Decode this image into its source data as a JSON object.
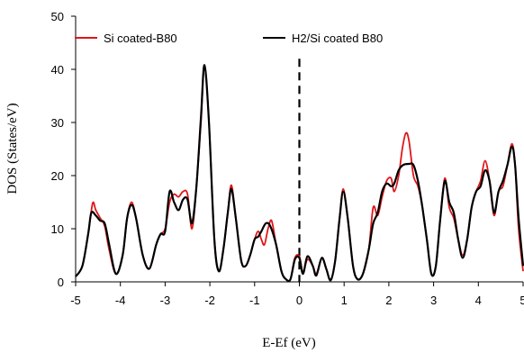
{
  "chart_data": {
    "type": "line",
    "xlabel": "E-Ef (eV)",
    "ylabel": "DOS (States/eV)",
    "xlim": [
      -5,
      5
    ],
    "ylim": [
      0,
      50
    ],
    "x_ticks": [
      -5,
      -4,
      -3,
      -2,
      -1,
      0,
      1,
      2,
      3,
      4,
      5
    ],
    "y_ticks": [
      0,
      10,
      20,
      30,
      40,
      50
    ],
    "grid": false,
    "legend_position": "top",
    "fermi_marker": {
      "x": 0,
      "y_top": 42,
      "style": "dashed"
    },
    "series": [
      {
        "name": "Si coated-B80",
        "color": "#e0161a",
        "points": [
          [
            -5.0,
            1
          ],
          [
            -4.85,
            3
          ],
          [
            -4.72,
            9
          ],
          [
            -4.62,
            14.8
          ],
          [
            -4.55,
            13.5
          ],
          [
            -4.45,
            12
          ],
          [
            -4.35,
            10.5
          ],
          [
            -4.25,
            6
          ],
          [
            -4.1,
            1.5
          ],
          [
            -3.95,
            5
          ],
          [
            -3.85,
            12
          ],
          [
            -3.75,
            15
          ],
          [
            -3.65,
            12
          ],
          [
            -3.5,
            5
          ],
          [
            -3.35,
            2.5
          ],
          [
            -3.2,
            7
          ],
          [
            -3.1,
            9
          ],
          [
            -3.0,
            10
          ],
          [
            -2.9,
            15
          ],
          [
            -2.8,
            16.5
          ],
          [
            -2.7,
            16
          ],
          [
            -2.6,
            17
          ],
          [
            -2.5,
            16.5
          ],
          [
            -2.4,
            10
          ],
          [
            -2.3,
            18
          ],
          [
            -2.2,
            30
          ],
          [
            -2.12,
            40.5
          ],
          [
            -2.02,
            30
          ],
          [
            -1.9,
            8
          ],
          [
            -1.8,
            2
          ],
          [
            -1.7,
            6
          ],
          [
            -1.6,
            13
          ],
          [
            -1.52,
            18.2
          ],
          [
            -1.42,
            12
          ],
          [
            -1.3,
            4
          ],
          [
            -1.2,
            3
          ],
          [
            -1.1,
            5
          ],
          [
            -1.0,
            8
          ],
          [
            -0.92,
            9.5
          ],
          [
            -0.85,
            8
          ],
          [
            -0.78,
            7
          ],
          [
            -0.7,
            10
          ],
          [
            -0.62,
            11.5
          ],
          [
            -0.52,
            7
          ],
          [
            -0.4,
            2
          ],
          [
            -0.3,
            0.5
          ],
          [
            -0.2,
            0.5
          ],
          [
            -0.1,
            4.5
          ],
          [
            0.0,
            4.8
          ],
          [
            0.08,
            1.8
          ],
          [
            0.18,
            4.2
          ],
          [
            0.3,
            3
          ],
          [
            0.38,
            1.5
          ],
          [
            0.5,
            4.5
          ],
          [
            0.6,
            2.5
          ],
          [
            0.7,
            0.3
          ],
          [
            0.8,
            4
          ],
          [
            0.9,
            12
          ],
          [
            0.98,
            17.5
          ],
          [
            1.08,
            12
          ],
          [
            1.2,
            3
          ],
          [
            1.3,
            0.5
          ],
          [
            1.42,
            1.5
          ],
          [
            1.55,
            6
          ],
          [
            1.65,
            14
          ],
          [
            1.75,
            12.5
          ],
          [
            1.85,
            16
          ],
          [
            1.95,
            19
          ],
          [
            2.05,
            19.5
          ],
          [
            2.12,
            17
          ],
          [
            2.22,
            20
          ],
          [
            2.3,
            25
          ],
          [
            2.38,
            28
          ],
          [
            2.45,
            26.5
          ],
          [
            2.55,
            20
          ],
          [
            2.65,
            18
          ],
          [
            2.75,
            14
          ],
          [
            2.85,
            8
          ],
          [
            2.95,
            1.5
          ],
          [
            3.05,
            3
          ],
          [
            3.15,
            12
          ],
          [
            3.25,
            19.5
          ],
          [
            3.35,
            14
          ],
          [
            3.45,
            12
          ],
          [
            3.55,
            8
          ],
          [
            3.65,
            5
          ],
          [
            3.75,
            8
          ],
          [
            3.85,
            14
          ],
          [
            3.95,
            17
          ],
          [
            4.05,
            19
          ],
          [
            4.15,
            22.8
          ],
          [
            4.25,
            19
          ],
          [
            4.35,
            12.5
          ],
          [
            4.45,
            17
          ],
          [
            4.55,
            18
          ],
          [
            4.65,
            22
          ],
          [
            4.75,
            26
          ],
          [
            4.82,
            22
          ],
          [
            4.9,
            10
          ],
          [
            5.0,
            2
          ]
        ]
      },
      {
        "name": "H2/Si coated B80",
        "color": "#000000",
        "points": [
          [
            -5.0,
            1
          ],
          [
            -4.85,
            3
          ],
          [
            -4.72,
            9
          ],
          [
            -4.65,
            13
          ],
          [
            -4.55,
            12.5
          ],
          [
            -4.45,
            11.5
          ],
          [
            -4.35,
            11
          ],
          [
            -4.25,
            7
          ],
          [
            -4.1,
            1.5
          ],
          [
            -3.95,
            5
          ],
          [
            -3.85,
            12
          ],
          [
            -3.75,
            14.5
          ],
          [
            -3.65,
            12
          ],
          [
            -3.5,
            5
          ],
          [
            -3.35,
            2.5
          ],
          [
            -3.2,
            7
          ],
          [
            -3.1,
            9
          ],
          [
            -3.0,
            9.5
          ],
          [
            -2.9,
            17
          ],
          [
            -2.8,
            15
          ],
          [
            -2.7,
            13.5
          ],
          [
            -2.6,
            15.5
          ],
          [
            -2.5,
            15.5
          ],
          [
            -2.4,
            11
          ],
          [
            -2.3,
            18
          ],
          [
            -2.2,
            31
          ],
          [
            -2.12,
            40.8
          ],
          [
            -2.02,
            30
          ],
          [
            -1.9,
            8
          ],
          [
            -1.8,
            2
          ],
          [
            -1.7,
            6
          ],
          [
            -1.6,
            13
          ],
          [
            -1.52,
            17.5
          ],
          [
            -1.42,
            12
          ],
          [
            -1.3,
            4
          ],
          [
            -1.2,
            3
          ],
          [
            -1.1,
            5
          ],
          [
            -1.0,
            8
          ],
          [
            -0.92,
            8.5
          ],
          [
            -0.85,
            9.5
          ],
          [
            -0.75,
            11
          ],
          [
            -0.65,
            10.5
          ],
          [
            -0.52,
            7
          ],
          [
            -0.4,
            2
          ],
          [
            -0.3,
            0.5
          ],
          [
            -0.2,
            0.5
          ],
          [
            -0.1,
            4.2
          ],
          [
            0.0,
            4.5
          ],
          [
            0.08,
            1.5
          ],
          [
            0.18,
            4.8
          ],
          [
            0.3,
            3
          ],
          [
            0.38,
            1.2
          ],
          [
            0.5,
            4.5
          ],
          [
            0.6,
            2.5
          ],
          [
            0.7,
            0.3
          ],
          [
            0.8,
            4
          ],
          [
            0.9,
            12
          ],
          [
            0.98,
            17
          ],
          [
            1.08,
            12
          ],
          [
            1.2,
            3
          ],
          [
            1.3,
            0.5
          ],
          [
            1.42,
            1.5
          ],
          [
            1.55,
            6
          ],
          [
            1.65,
            11
          ],
          [
            1.75,
            13
          ],
          [
            1.85,
            17
          ],
          [
            1.95,
            18.5
          ],
          [
            2.05,
            18
          ],
          [
            2.12,
            18.5
          ],
          [
            2.22,
            21
          ],
          [
            2.32,
            22
          ],
          [
            2.45,
            22.2
          ],
          [
            2.55,
            22
          ],
          [
            2.65,
            19
          ],
          [
            2.75,
            14
          ],
          [
            2.85,
            8
          ],
          [
            2.95,
            1.5
          ],
          [
            3.05,
            3
          ],
          [
            3.15,
            12
          ],
          [
            3.25,
            19
          ],
          [
            3.35,
            15
          ],
          [
            3.45,
            13
          ],
          [
            3.55,
            8
          ],
          [
            3.65,
            4.5
          ],
          [
            3.75,
            8
          ],
          [
            3.85,
            14
          ],
          [
            3.95,
            17
          ],
          [
            4.05,
            18
          ],
          [
            4.15,
            21
          ],
          [
            4.25,
            19
          ],
          [
            4.35,
            13
          ],
          [
            4.45,
            17
          ],
          [
            4.55,
            19
          ],
          [
            4.65,
            22
          ],
          [
            4.75,
            25.5
          ],
          [
            4.82,
            22
          ],
          [
            4.9,
            12
          ],
          [
            5.0,
            3
          ]
        ]
      }
    ]
  }
}
